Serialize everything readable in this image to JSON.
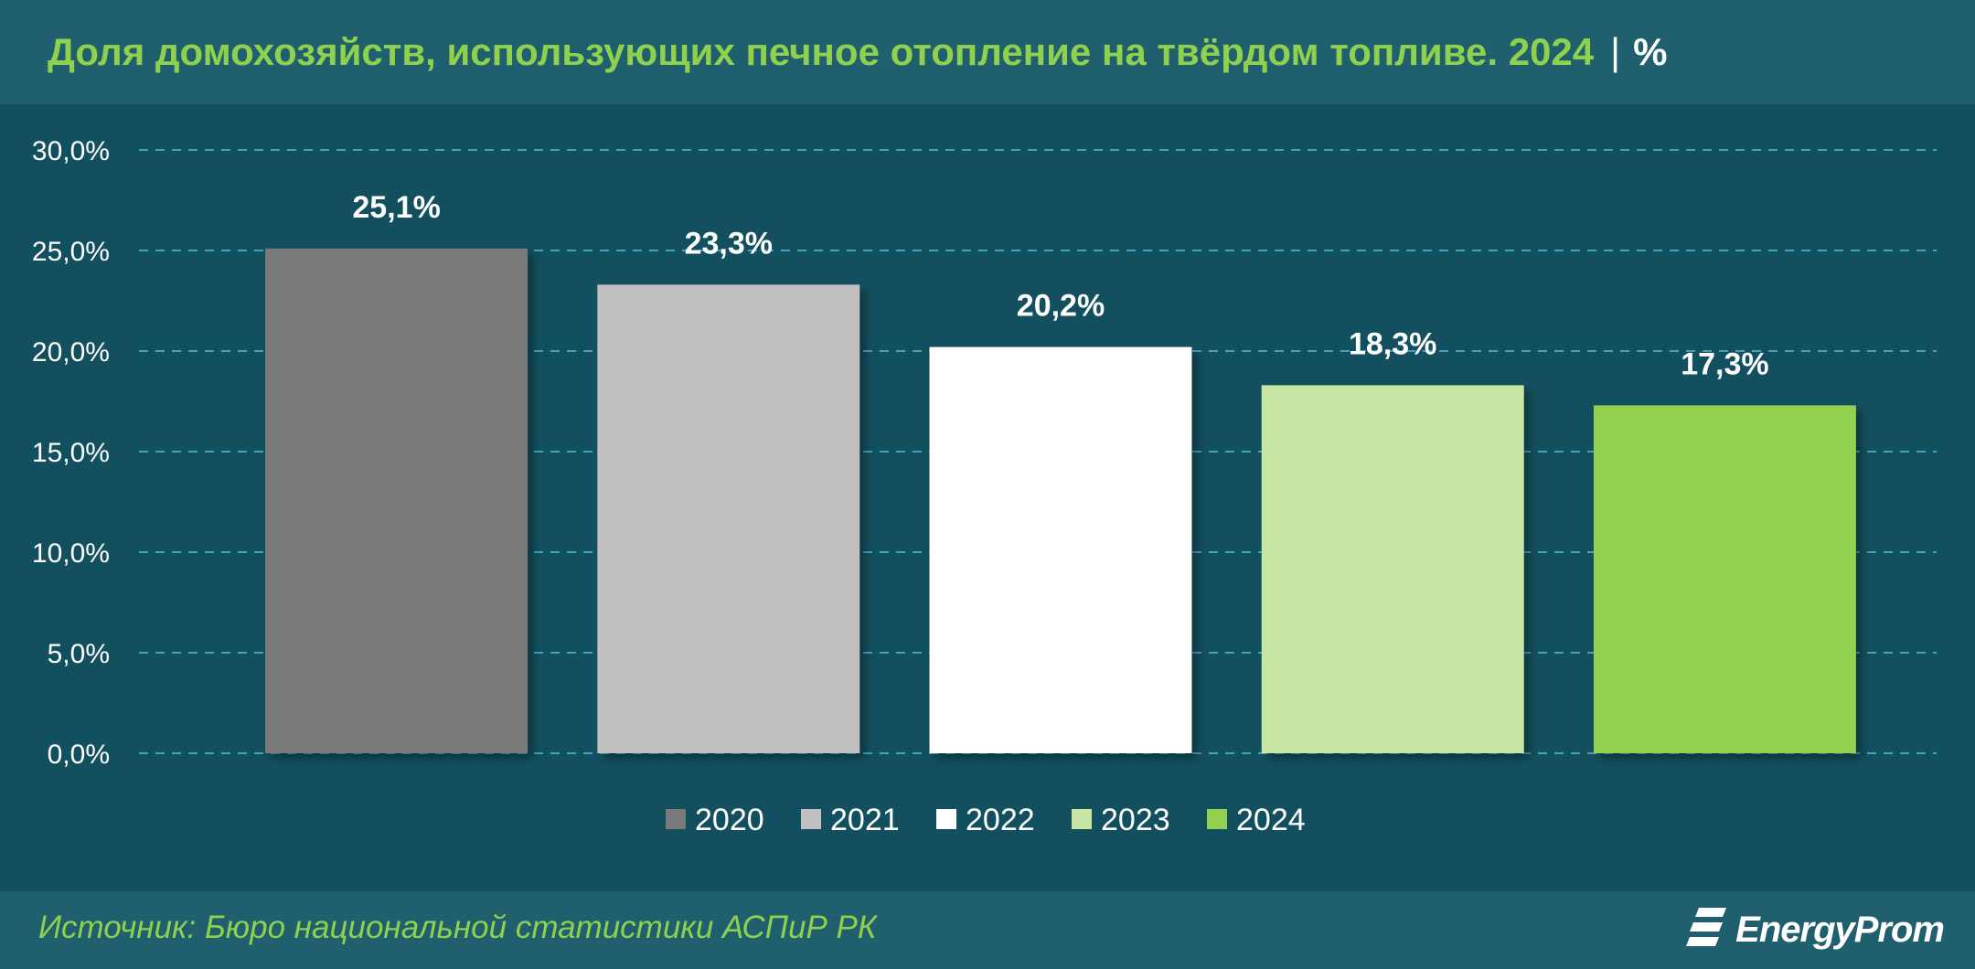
{
  "header": {
    "title": "Доля домохозяйств, использующих печное отопление на твёрдом топливе. 2024",
    "separator": "|",
    "unit": "%"
  },
  "footer": {
    "source": "Источник: Бюро национальной статистики АСПиР РК",
    "logo_text": "EnergyProm",
    "logo_icon": "energyprom-logo-icon"
  },
  "colors": {
    "background": "#13505f",
    "header_bg": "#1f5f6e",
    "title": "#8fd14f",
    "gridline": "#3fa3bd"
  },
  "chart_data": {
    "type": "bar",
    "title": "Доля домохозяйств, использующих печное отопление на твёрдом топливе. 2024",
    "xlabel": "",
    "ylabel": "",
    "ylim": [
      0,
      30
    ],
    "yticks": [
      0,
      5,
      10,
      15,
      20,
      25,
      30
    ],
    "ytick_labels": [
      "0,0%",
      "5,0%",
      "10,0%",
      "15,0%",
      "20,0%",
      "25,0%",
      "30,0%"
    ],
    "grid": true,
    "legend_position": "bottom",
    "series": [
      {
        "name": "2020",
        "value": 25.1,
        "label": "25,1%",
        "color": "#7a7a7a"
      },
      {
        "name": "2021",
        "value": 23.3,
        "label": "23,3%",
        "color": "#c0c0c0"
      },
      {
        "name": "2022",
        "value": 20.2,
        "label": "20,2%",
        "color": "#ffffff"
      },
      {
        "name": "2023",
        "value": 18.3,
        "label": "18,3%",
        "color": "#c8e6a3"
      },
      {
        "name": "2024",
        "value": 17.3,
        "label": "17,3%",
        "color": "#92d050"
      }
    ]
  }
}
